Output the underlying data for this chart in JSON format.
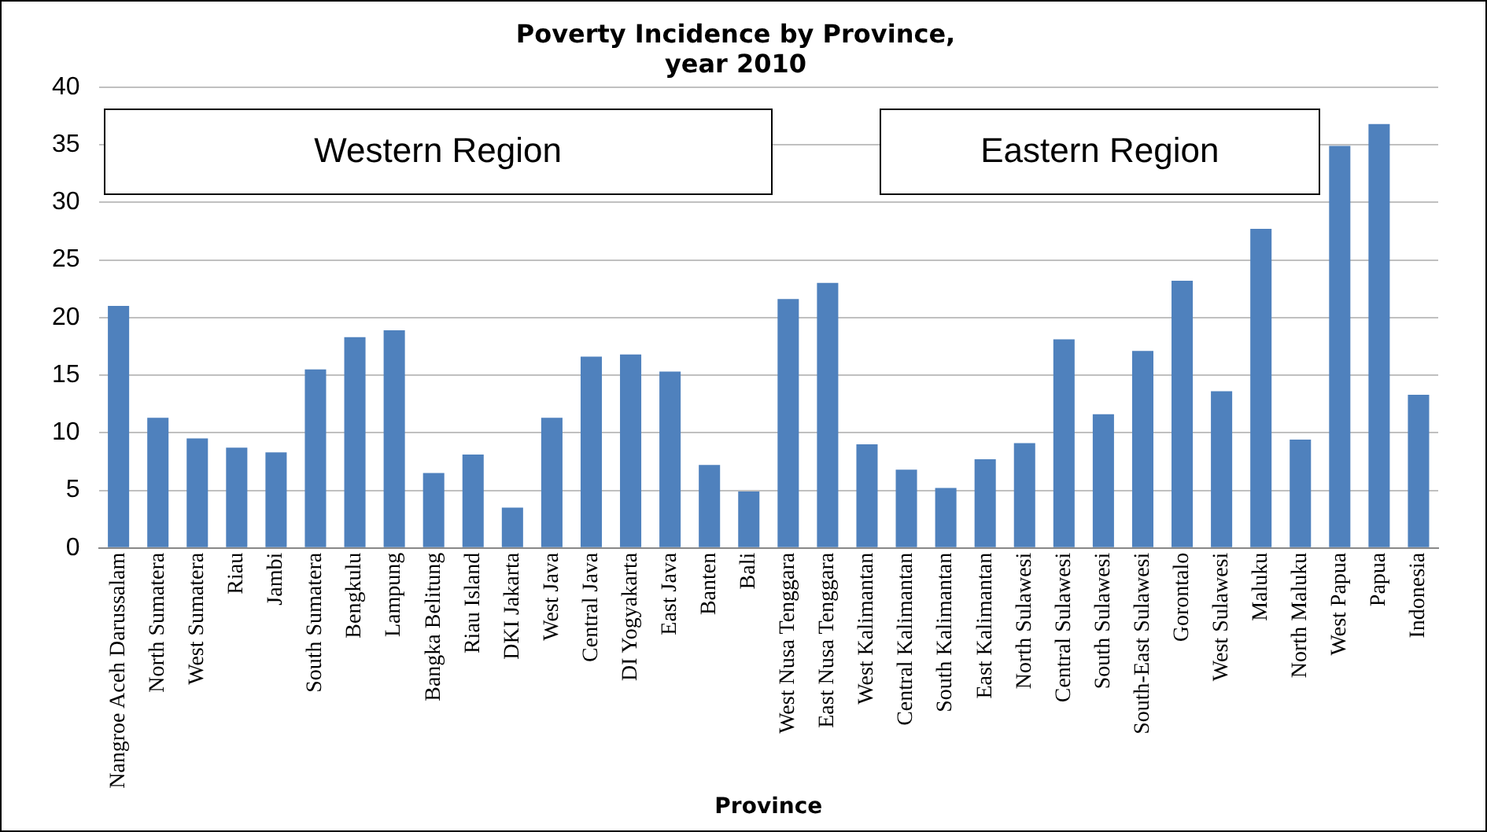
{
  "chart_data": {
    "type": "bar",
    "title": "Poverty Incidence by Province,\nyear 2010",
    "xlabel": "Province",
    "categories": [
      "Nangroe Aceh Darussalam",
      "North Sumatera",
      "West Sumatera",
      "Riau",
      "Jambi",
      "South Sumatera",
      "Bengkulu",
      "Lampung",
      "Bangka Belitung",
      "Riau Island",
      "DKI Jakarta",
      "West Java",
      "Central Java",
      "DI Yogyakarta",
      "East Java",
      "Banten",
      "Bali",
      "West Nusa Tenggara",
      "East Nusa Tenggara",
      "West Kalimantan",
      "Central Kalimantan",
      "South Kalimantan",
      "East Kalimantan",
      "North Sulawesi",
      "Central Sulawesi",
      "South Sulawesi",
      "South-East Sulawesi",
      "Gorontalo",
      "West Sulawesi",
      "Maluku",
      "North Maluku",
      "West Papua",
      "Papua",
      "Indonesia"
    ],
    "values": [
      21,
      11.3,
      9.5,
      8.7,
      8.3,
      15.5,
      18.3,
      18.9,
      6.5,
      8.1,
      3.5,
      11.3,
      16.6,
      16.8,
      15.3,
      7.2,
      4.9,
      21.6,
      23.0,
      9.0,
      6.8,
      5.2,
      7.7,
      9.1,
      18.1,
      11.6,
      17.1,
      23.2,
      13.6,
      27.7,
      9.4,
      34.9,
      36.8,
      13.3
    ],
    "color": "#4f81bd",
    "ylim": [
      0,
      40
    ],
    "yticks": [
      0,
      5,
      10,
      15,
      20,
      25,
      30,
      35,
      40
    ],
    "grid": "y",
    "legend": false,
    "annotations": [
      "Western Region",
      "Eastern Region"
    ]
  }
}
